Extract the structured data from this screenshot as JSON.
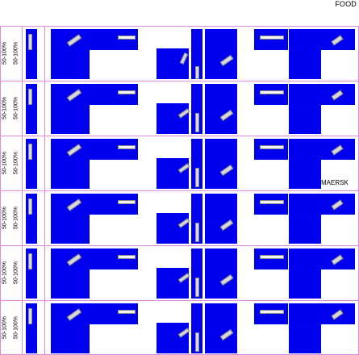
{
  "header": {
    "title": "FOOD"
  },
  "side_label": "MAERSK",
  "rows": [
    {
      "col1": "50-100%",
      "col2": "50-100%"
    },
    {
      "col1": "50-100%",
      "col2": "50-100%"
    },
    {
      "col1": "50-100%",
      "col2": "50-100%"
    },
    {
      "col1": "50-100%",
      "col2": "50-100%"
    },
    {
      "col1": "50-100%",
      "col2": "50-100%"
    },
    {
      "col1": "50-100%",
      "col2": "50-100%"
    }
  ],
  "colors": {
    "blue": "#0000ee",
    "grid": "#e08be0"
  }
}
